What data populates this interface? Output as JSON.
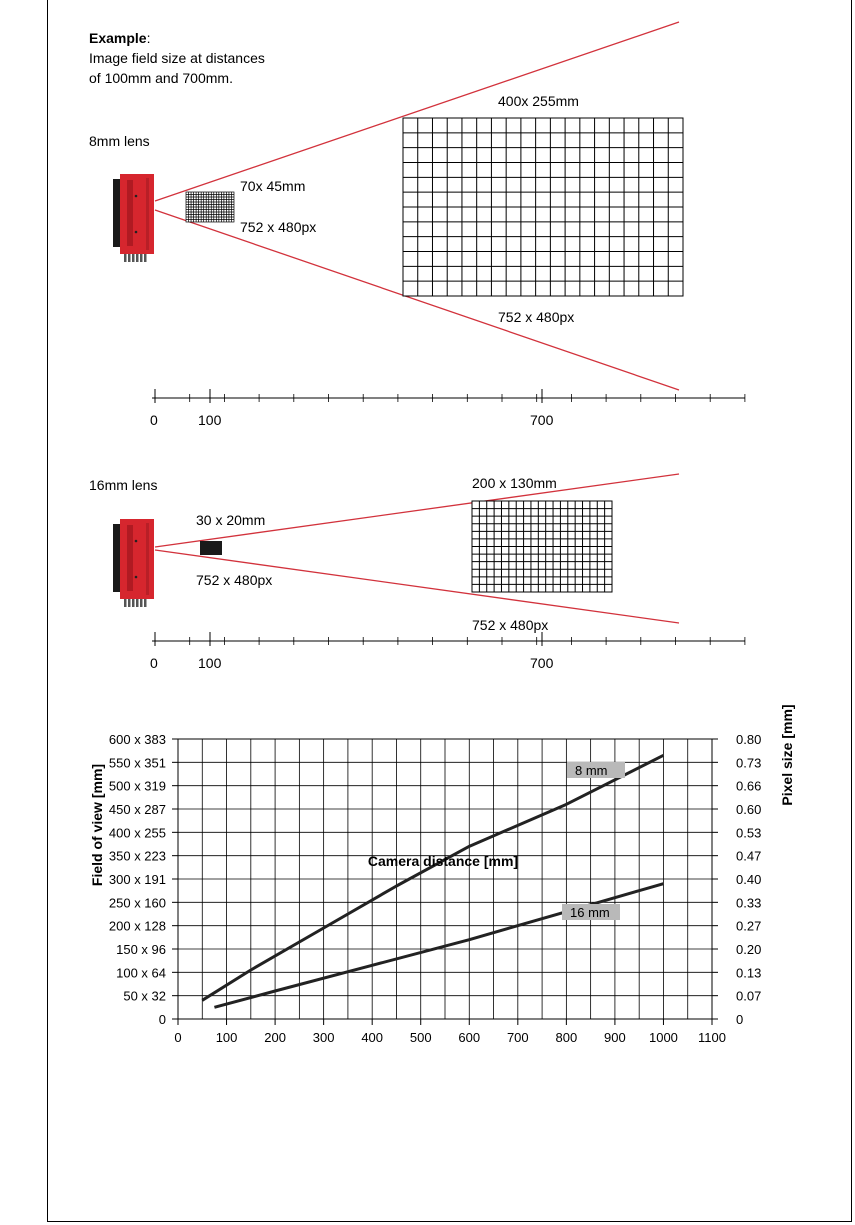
{
  "example": {
    "heading": "Example",
    "heading_colon": ":",
    "line1": "Image field size at distances",
    "line2": "of 100mm and 700mm."
  },
  "lens8": {
    "label": "8mm lens",
    "near_size": "70x 45mm",
    "near_px": "752 x 480px",
    "far_size": "400x 255mm",
    "far_px": "752 x 480px",
    "axis_ticks": [
      "0",
      "100",
      "700"
    ]
  },
  "lens16": {
    "label": "16mm lens",
    "near_size": "30 x 20mm",
    "near_px": "752 x 480px",
    "far_size": "200 x 130mm",
    "far_px": "752 x 480px",
    "axis_ticks": [
      "0",
      "100",
      "700"
    ]
  },
  "colors": {
    "camera_red": "#d6262e",
    "beam_line": "#d2323c",
    "series_line": "#222222",
    "series_label_bg": "#b9b9b9"
  },
  "chart_data": {
    "type": "line",
    "xlabel": "Camera distance [mm]",
    "ylabel": "Field of view [mm]",
    "y2label": "Pixel size [mm]",
    "xlim": [
      0,
      1100
    ],
    "ylim": [
      0,
      600
    ],
    "x_ticks": [
      "0",
      "100",
      "200",
      "300",
      "400",
      "500",
      "600",
      "700",
      "800",
      "900",
      "1000",
      "1100"
    ],
    "y_ticks_left": [
      "0",
      "50 x 32",
      "100 x 64",
      "150 x 96",
      "200 x 128",
      "250 x 160",
      "300 x 191",
      "350 x 223",
      "400 x 255",
      "450 x 287",
      "500 x 319",
      "550 x 351",
      "600 x 383"
    ],
    "y_ticks_right": [
      "0",
      "0.07",
      "0.13",
      "0.20",
      "0.27",
      "0.33",
      "0.40",
      "0.47",
      "0.53",
      "0.60",
      "0.66",
      "0.73",
      "0.80"
    ],
    "grid": true,
    "series": [
      {
        "name": "8 mm",
        "x": [
          50,
          150,
          300,
          450,
          600,
          800,
          1000
        ],
        "y": [
          40,
          105,
          195,
          285,
          370,
          460,
          565
        ]
      },
      {
        "name": "16 mm",
        "x": [
          75,
          200,
          400,
          600,
          800,
          1000
        ],
        "y": [
          25,
          60,
          115,
          170,
          230,
          290
        ]
      }
    ]
  }
}
